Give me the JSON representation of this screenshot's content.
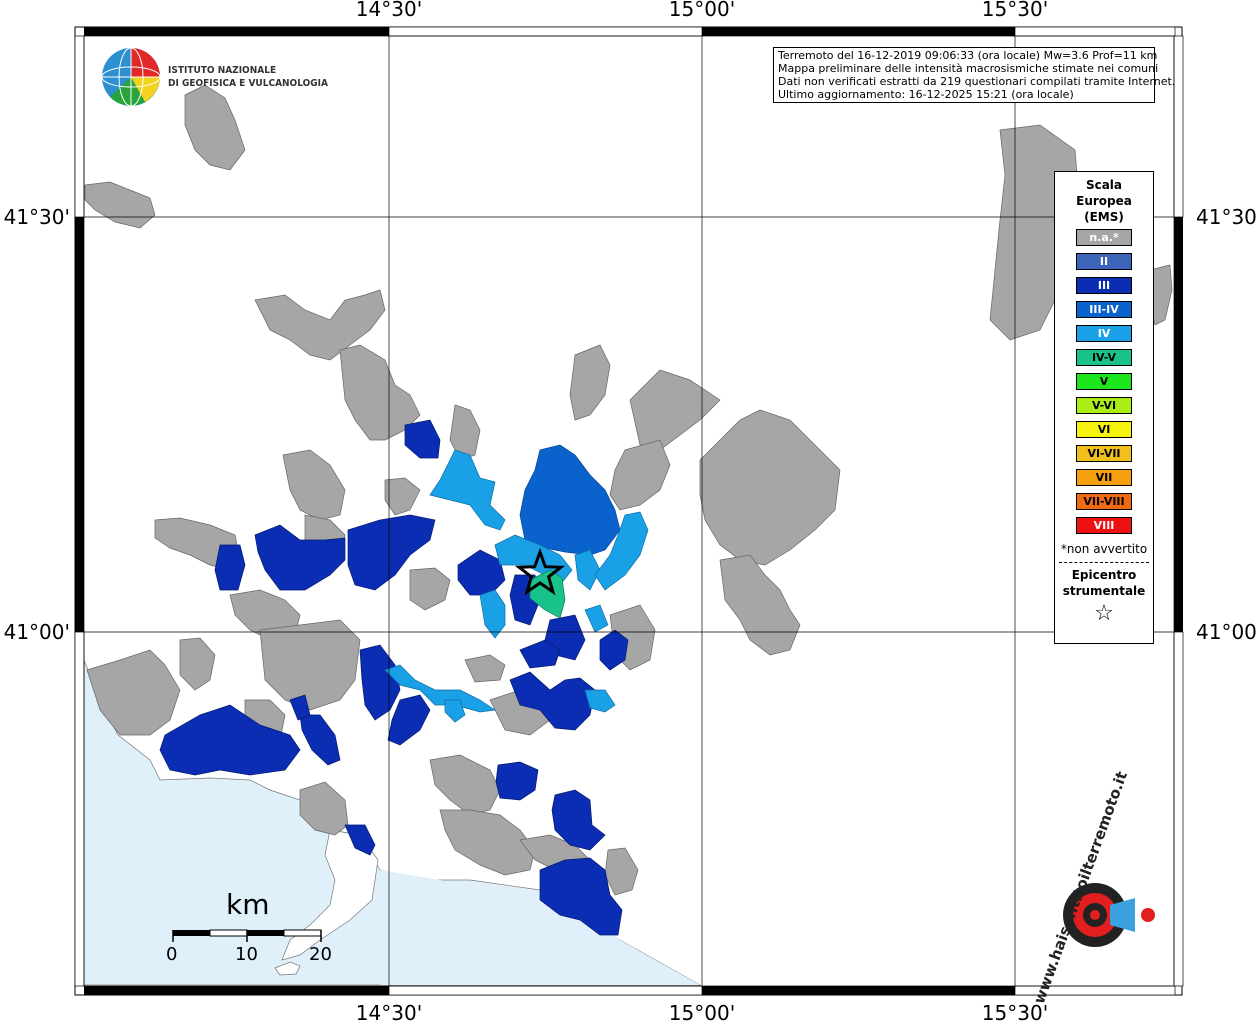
{
  "info_box": {
    "line1": "Terremoto del 16-12-2019 09:06:33 (ora locale) Mw=3.6 Prof=11 km",
    "line2": "Mappa preliminare delle intensità macrosismiche stimate nei comuni",
    "line3": "Dati non verificati estratti da 219 questionari compilati tramite Internet.",
    "line4": "Ultimo aggiornamento: 16-12-2025 15:21 (ora locale)"
  },
  "axes": {
    "top": [
      "14°30'",
      "15°00'",
      "15°30'"
    ],
    "bottom": [
      "14°30'",
      "15°00'",
      "15°30'"
    ],
    "left": [
      "41°30'",
      "41°00'"
    ],
    "right": [
      "41°30'",
      "41°00'"
    ]
  },
  "logo": {
    "line1": "ISTITUTO NAZIONALE",
    "line2": "DI GEOFISICA E VULCANOLOGIA"
  },
  "legend": {
    "title1": "Scala",
    "title2": "Europea",
    "title3": "(EMS)",
    "items": [
      {
        "label": "n.a.*",
        "color": "#a6a6a6",
        "text": "#ffffff"
      },
      {
        "label": "II",
        "color": "#3d64b8",
        "text": "#ffffff"
      },
      {
        "label": "III",
        "color": "#0a2db3",
        "text": "#ffffff"
      },
      {
        "label": "III-IV",
        "color": "#0a62cc",
        "text": "#ffffff"
      },
      {
        "label": "IV",
        "color": "#1aa0e6",
        "text": "#ffffff"
      },
      {
        "label": "IV-V",
        "color": "#19c28a",
        "text": "#000000"
      },
      {
        "label": "V",
        "color": "#1ee61e",
        "text": "#000000"
      },
      {
        "label": "V-VI",
        "color": "#aaee16",
        "text": "#000000"
      },
      {
        "label": "VI",
        "color": "#f7f20d",
        "text": "#000000"
      },
      {
        "label": "VI-VII",
        "color": "#f2c01a",
        "text": "#000000"
      },
      {
        "label": "VII",
        "color": "#f5a00f",
        "text": "#000000"
      },
      {
        "label": "VII-VIII",
        "color": "#f06a14",
        "text": "#000000"
      },
      {
        "label": "VIII",
        "color": "#ee1111",
        "text": "#ffffff"
      }
    ],
    "not_felt_note": "*non avvertito",
    "epicenter_title1": "Epicentro",
    "epicenter_title2": "strumentale",
    "epicenter_symbol": "☆"
  },
  "scale_bar": {
    "unit": "km",
    "ticks": [
      "0",
      "10",
      "20"
    ]
  },
  "watermark": {
    "text": "www.haisentitoilterremoto.it"
  },
  "colors": {
    "sea": "#dff0fb",
    "na": "#a6a6a6",
    "iii": "#0a2db3",
    "iii_iv": "#0a62cc",
    "iv": "#1aa0e6",
    "iv_v": "#19c28a"
  }
}
